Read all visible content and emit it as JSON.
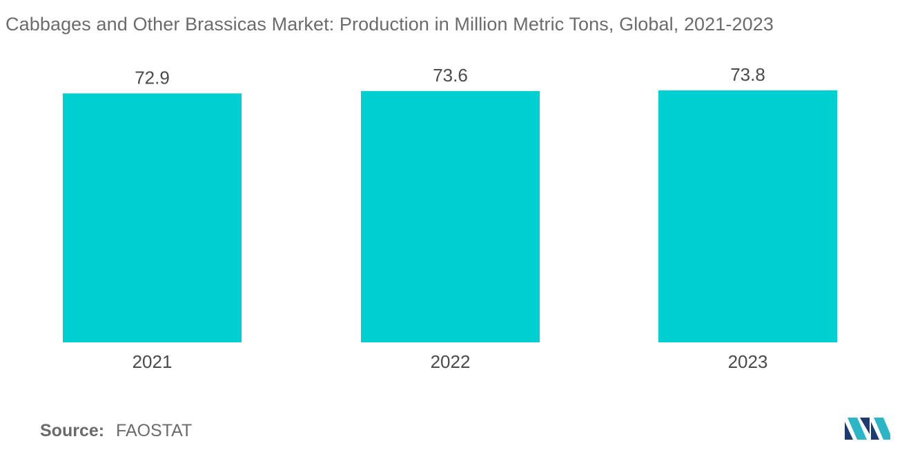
{
  "chart_data": {
    "type": "bar",
    "title": "Cabbages and Other Brassicas Market: Production in Million Metric Tons, Global, 2021-2023",
    "categories": [
      "2021",
      "2022",
      "2023"
    ],
    "values": [
      72.9,
      73.6,
      73.8
    ],
    "value_labels": [
      "72.9",
      "73.6",
      "73.8"
    ],
    "xlabel": "",
    "ylabel": "",
    "ylim": [
      0,
      76
    ],
    "grid": false,
    "legend": "none",
    "bar_color": "#00cfd1"
  },
  "source": {
    "label": "Source:",
    "value": "FAOSTAT"
  },
  "logo": {
    "icon": "mordor-intelligence-logo",
    "colors": [
      "#1d3b6e",
      "#2bb5c6"
    ]
  }
}
